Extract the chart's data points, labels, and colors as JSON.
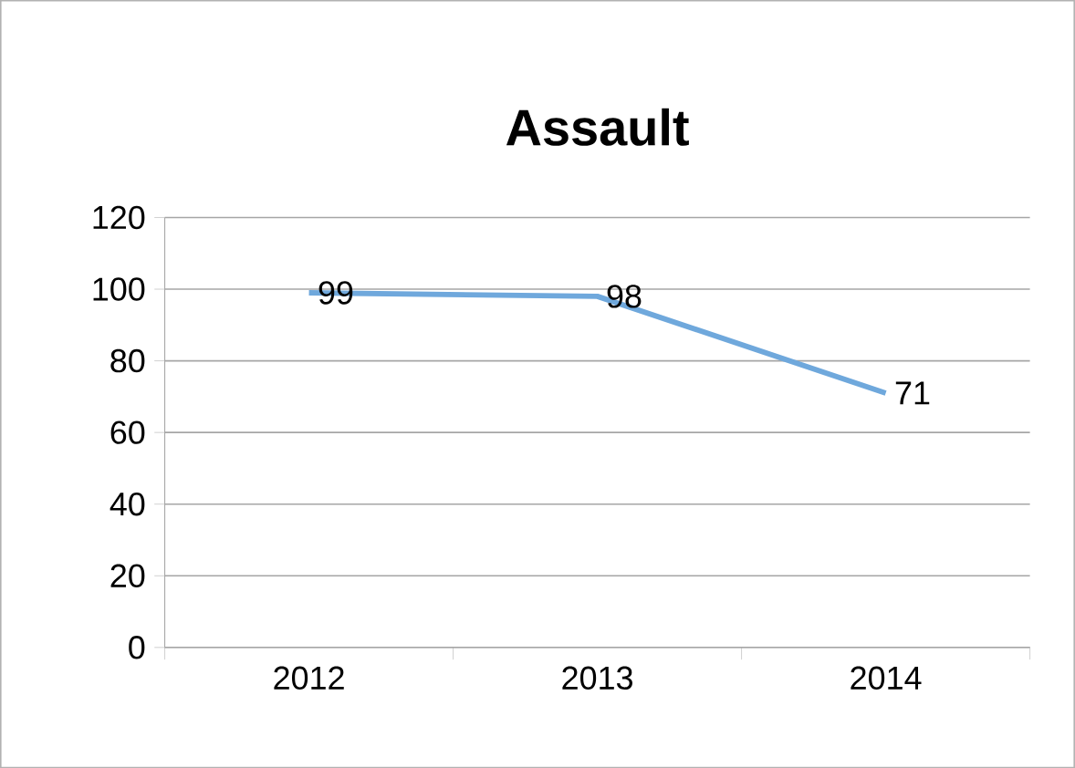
{
  "chart_data": {
    "type": "line",
    "title": "Assault",
    "categories": [
      "2012",
      "2013",
      "2014"
    ],
    "values": [
      99,
      98,
      71
    ],
    "value_labels": [
      "99",
      "98",
      "71"
    ],
    "color": "#6fa8dc",
    "ylim": [
      0,
      120
    ],
    "yticks": [
      0,
      20,
      40,
      60,
      80,
      100,
      120
    ],
    "grid": "y"
  }
}
